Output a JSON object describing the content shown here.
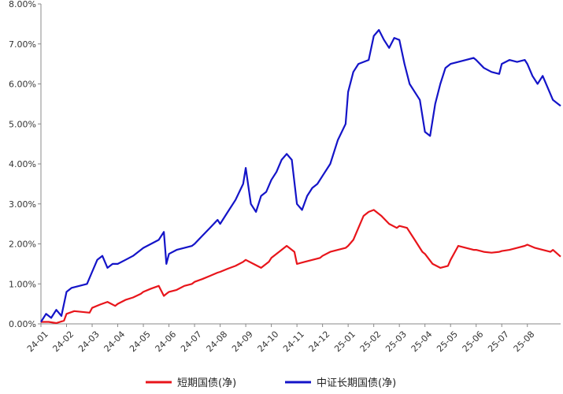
{
  "chart_data": {
    "type": "line",
    "title": "",
    "xlabel": "",
    "ylabel": "",
    "grid": false,
    "legend_position": "bottom",
    "y_tick_labels": [
      "0.00%",
      "1.00%",
      "2.00%",
      "3.00%",
      "4.00%",
      "5.00%",
      "6.00%",
      "7.00%",
      "8.00%"
    ],
    "y_ticks": [
      0,
      1,
      2,
      3,
      4,
      5,
      6,
      7,
      8
    ],
    "ylim": [
      0,
      8
    ],
    "x_tick_labels": [
      "24-01",
      "24-02",
      "24-03",
      "24-04",
      "24-05",
      "24-06",
      "24-07",
      "24-08",
      "24-09",
      "24-10",
      "24-11",
      "24-12",
      "25-01",
      "25-02",
      "25-03",
      "25-04",
      "25-05",
      "25-06",
      "25-07",
      "25-08"
    ],
    "xlim": [
      0,
      20.3
    ],
    "series": [
      {
        "name": "短期国债(净)",
        "color": "#e8151b",
        "x": [
          0,
          0.3,
          0.6,
          0.9,
          1.0,
          1.3,
          1.6,
          1.9,
          2.0,
          2.3,
          2.6,
          2.9,
          3.0,
          3.3,
          3.6,
          3.9,
          4.0,
          4.3,
          4.6,
          4.8,
          4.9,
          5.0,
          5.3,
          5.6,
          5.9,
          6.0,
          6.3,
          6.6,
          6.9,
          7.0,
          7.3,
          7.6,
          7.9,
          8.0,
          8.3,
          8.6,
          8.9,
          9.0,
          9.3,
          9.6,
          9.9,
          10.0,
          10.3,
          10.6,
          10.9,
          11.0,
          11.3,
          11.6,
          11.9,
          12.0,
          12.2,
          12.4,
          12.6,
          12.8,
          13.0,
          13.3,
          13.6,
          13.9,
          14.0,
          14.3,
          14.6,
          14.9,
          15.0,
          15.3,
          15.6,
          15.9,
          16.0,
          16.3,
          16.6,
          16.9,
          17.0,
          17.3,
          17.6,
          17.9,
          18.0,
          18.3,
          18.6,
          18.9,
          19.0,
          19.3,
          19.6,
          19.9,
          20.0,
          20.3
        ],
        "values": [
          0.05,
          0.05,
          0.02,
          0.08,
          0.25,
          0.32,
          0.3,
          0.28,
          0.4,
          0.48,
          0.55,
          0.45,
          0.5,
          0.6,
          0.66,
          0.75,
          0.8,
          0.88,
          0.95,
          0.7,
          0.75,
          0.8,
          0.85,
          0.95,
          1.0,
          1.05,
          1.12,
          1.2,
          1.28,
          1.3,
          1.38,
          1.45,
          1.55,
          1.6,
          1.5,
          1.4,
          1.55,
          1.65,
          1.8,
          1.95,
          1.8,
          1.5,
          1.55,
          1.6,
          1.65,
          1.7,
          1.8,
          1.85,
          1.9,
          1.95,
          2.1,
          2.4,
          2.7,
          2.8,
          2.85,
          2.7,
          2.5,
          2.4,
          2.45,
          2.4,
          2.1,
          1.8,
          1.75,
          1.5,
          1.4,
          1.45,
          1.6,
          1.95,
          1.9,
          1.85,
          1.85,
          1.8,
          1.78,
          1.8,
          1.82,
          1.85,
          1.9,
          1.95,
          1.98,
          1.9,
          1.85,
          1.8,
          1.85,
          1.68
        ]
      },
      {
        "name": "中证长期国债(净)",
        "color": "#1414c8",
        "x": [
          0,
          0.2,
          0.4,
          0.6,
          0.8,
          1.0,
          1.2,
          1.5,
          1.8,
          2.0,
          2.2,
          2.4,
          2.6,
          2.8,
          3.0,
          3.3,
          3.6,
          3.9,
          4.0,
          4.3,
          4.6,
          4.8,
          4.9,
          5.0,
          5.3,
          5.6,
          5.9,
          6.0,
          6.3,
          6.6,
          6.9,
          7.0,
          7.3,
          7.6,
          7.9,
          8.0,
          8.2,
          8.4,
          8.6,
          8.8,
          9.0,
          9.2,
          9.4,
          9.6,
          9.8,
          10.0,
          10.2,
          10.4,
          10.6,
          10.8,
          11.0,
          11.3,
          11.6,
          11.9,
          12.0,
          12.2,
          12.4,
          12.6,
          12.8,
          13.0,
          13.2,
          13.4,
          13.6,
          13.8,
          14.0,
          14.2,
          14.4,
          14.6,
          14.8,
          15.0,
          15.2,
          15.4,
          15.6,
          15.8,
          16.0,
          16.3,
          16.6,
          16.9,
          17.0,
          17.3,
          17.6,
          17.9,
          18.0,
          18.3,
          18.6,
          18.9,
          19.0,
          19.2,
          19.4,
          19.6,
          19.8,
          20.0,
          20.2,
          20.3
        ],
        "values": [
          0.05,
          0.25,
          0.15,
          0.35,
          0.2,
          0.8,
          0.9,
          0.95,
          1.0,
          1.3,
          1.6,
          1.7,
          1.4,
          1.5,
          1.5,
          1.6,
          1.7,
          1.85,
          1.9,
          2.0,
          2.1,
          2.3,
          1.5,
          1.75,
          1.85,
          1.9,
          1.95,
          2.0,
          2.2,
          2.4,
          2.6,
          2.5,
          2.8,
          3.1,
          3.5,
          3.9,
          3.0,
          2.8,
          3.2,
          3.3,
          3.6,
          3.8,
          4.1,
          4.25,
          4.1,
          3.0,
          2.85,
          3.2,
          3.4,
          3.5,
          3.7,
          4.0,
          4.6,
          5.0,
          5.8,
          6.3,
          6.5,
          6.55,
          6.6,
          7.2,
          7.35,
          7.1,
          6.9,
          7.15,
          7.1,
          6.5,
          6.0,
          5.8,
          5.6,
          4.8,
          4.7,
          5.5,
          6.0,
          6.4,
          6.5,
          6.55,
          6.6,
          6.65,
          6.6,
          6.4,
          6.3,
          6.25,
          6.5,
          6.6,
          6.55,
          6.6,
          6.5,
          6.2,
          6.0,
          6.2,
          5.9,
          5.6,
          5.5,
          5.45
        ]
      }
    ]
  }
}
